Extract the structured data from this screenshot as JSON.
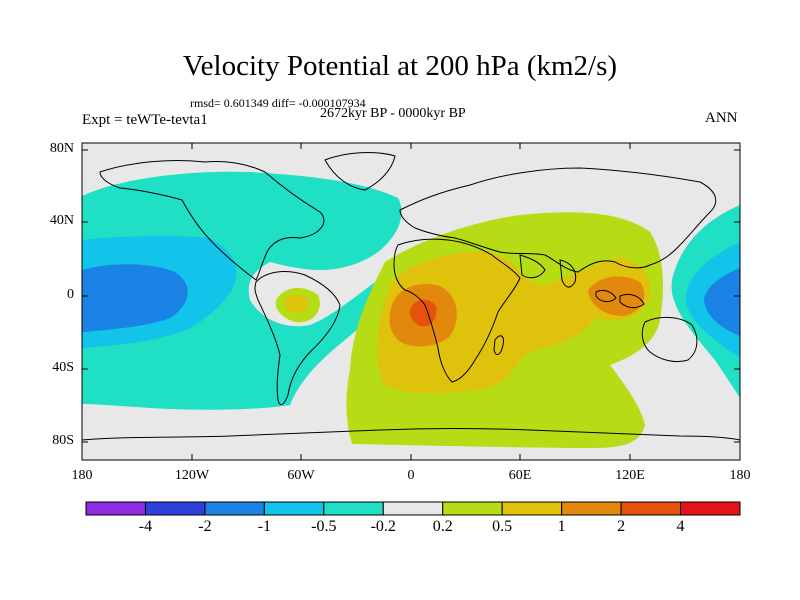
{
  "title": "Velocity Potential at 200 hPa (km2/s)",
  "stats": "rmsd= 0.601349 diff= -0.000107934",
  "period": "2672kyr BP - 0000kyr BP",
  "experiment": "Expt = teWTe-tevta1",
  "season": "ANN",
  "lat_labels": [
    "80N",
    "40N",
    "0",
    "40S",
    "80S"
  ],
  "lon_labels": [
    "180",
    "120W",
    "60W",
    "0",
    "60E",
    "120E",
    "180"
  ],
  "colorbar": {
    "labels": [
      "-4",
      "-2",
      "-1",
      "-0.5",
      "-0.2",
      "0.2",
      "0.5",
      "1",
      "2",
      "4"
    ],
    "colors": [
      "#8f2be0",
      "#2d40dc",
      "#1b82e6",
      "#12c3ea",
      "#1fdfc4",
      "#e8e8e8",
      "#b6dc16",
      "#dfc20c",
      "#e2880c",
      "#e4520c",
      "#e6121a"
    ]
  }
}
